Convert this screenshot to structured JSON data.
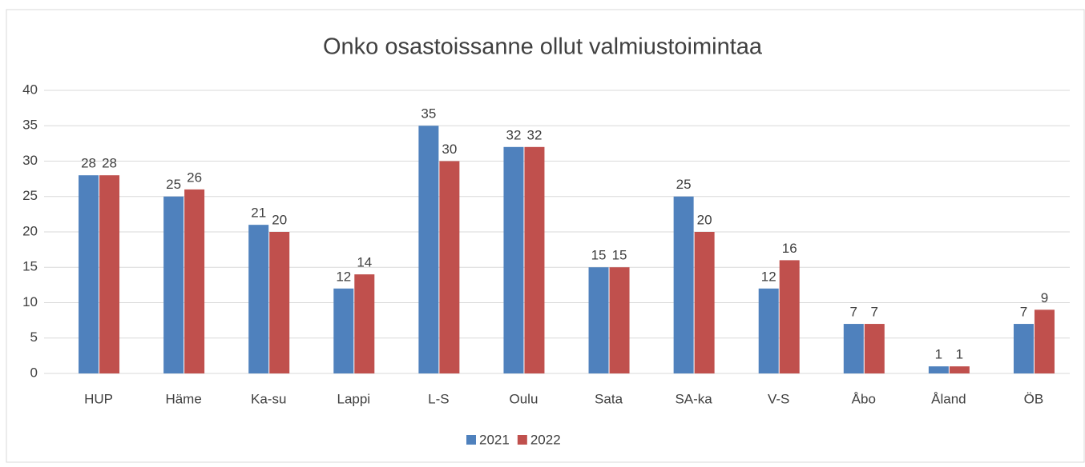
{
  "chart_data": {
    "type": "bar",
    "title": "Onko osastoissanne ollut valmiustoimintaa",
    "categories": [
      "HUP",
      "Häme",
      "Ka-su",
      "Lappi",
      "L-S",
      "Oulu",
      "Sata",
      "SA-ka",
      "V-S",
      "Åbo",
      "Åland",
      "ÖB"
    ],
    "series": [
      {
        "name": "2021",
        "color": "#4f81bd",
        "values": [
          28,
          25,
          21,
          12,
          35,
          32,
          15,
          25,
          12,
          7,
          1,
          7
        ]
      },
      {
        "name": "2022",
        "color": "#c0504d",
        "values": [
          28,
          26,
          20,
          14,
          30,
          32,
          15,
          20,
          16,
          7,
          1,
          9
        ]
      }
    ],
    "ylim": [
      0,
      40
    ],
    "yticks": [
      0,
      5,
      10,
      15,
      20,
      25,
      30,
      35,
      40
    ],
    "grid": true,
    "legend": "bottom"
  }
}
